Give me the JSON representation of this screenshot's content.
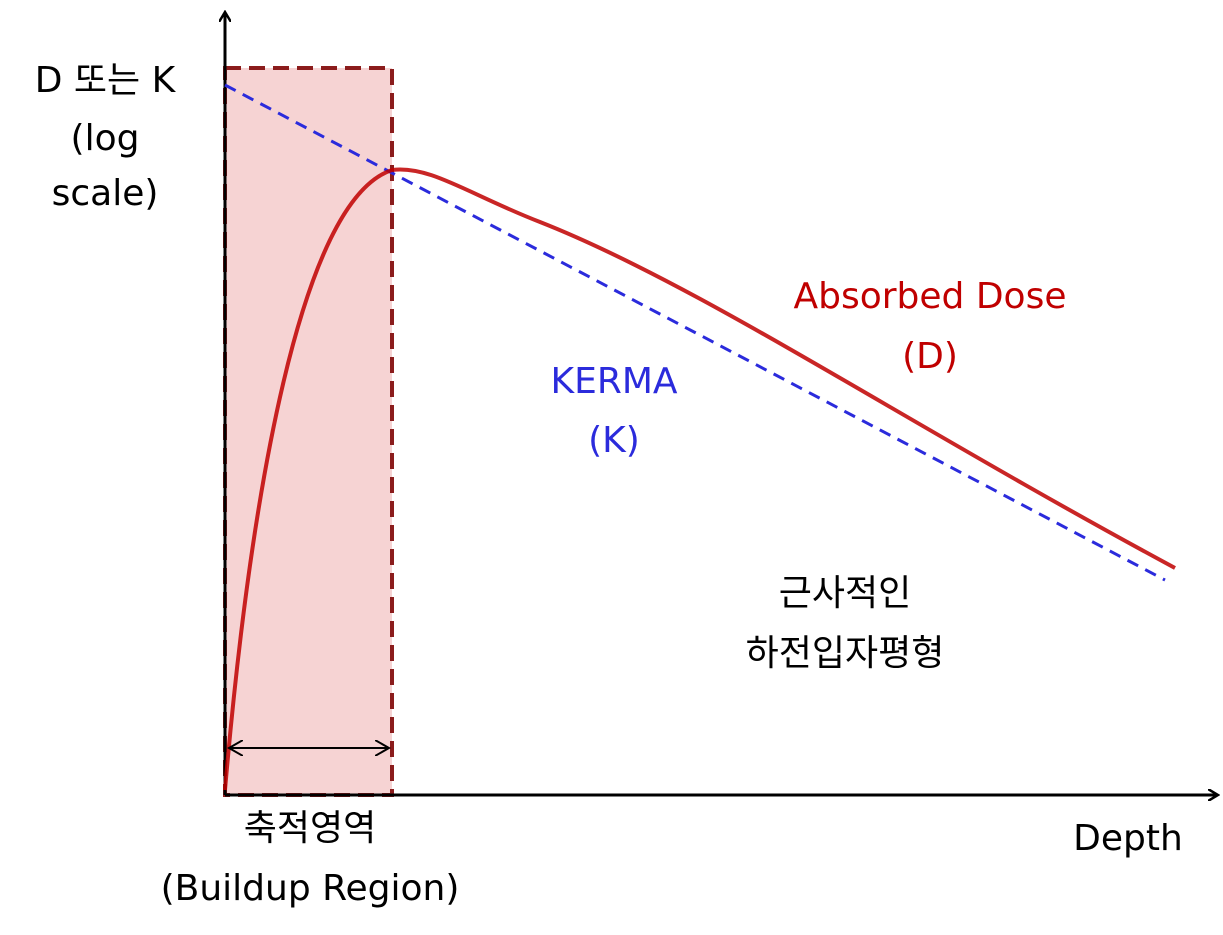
{
  "y_axis_label": {
    "lines": [
      "D 또는 K",
      "(log",
      "scale)"
    ]
  },
  "x_axis_label": "Depth",
  "dose_curve": {
    "label": [
      "Absorbed Dose",
      "(D)"
    ]
  },
  "kerma_curve": {
    "label": [
      "KERMA",
      "(K)"
    ]
  },
  "equilibrium_note": {
    "lines": [
      "근사적인",
      "하전입자평형"
    ]
  },
  "buildup_region": {
    "lines": [
      "축적영역",
      "(Buildup Region)"
    ]
  }
}
